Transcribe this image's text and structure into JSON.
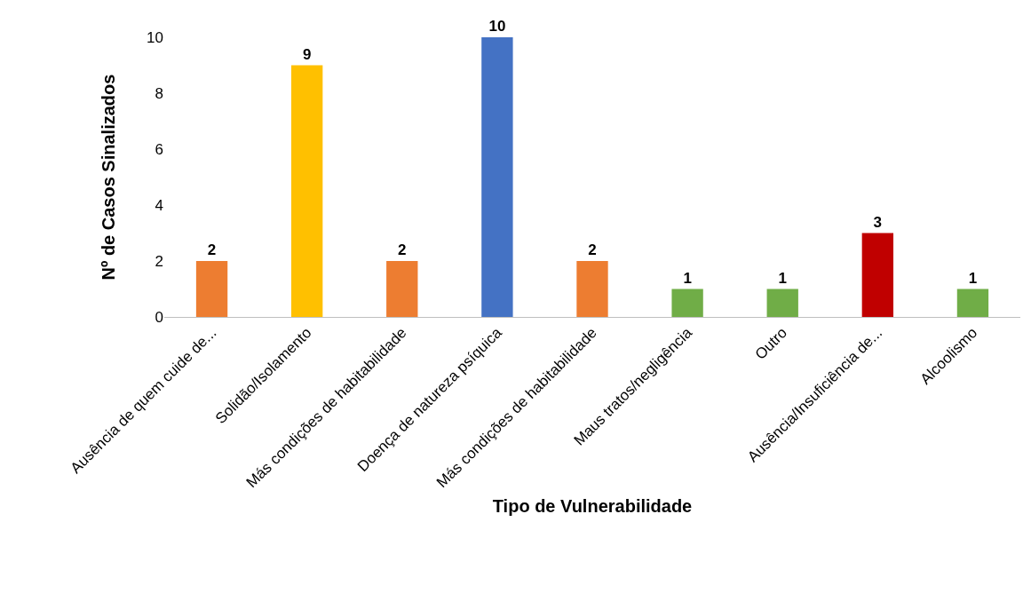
{
  "chart_data": {
    "type": "bar",
    "xlabel": "Tipo de Vulnerabilidade",
    "ylabel": "Nº de Casos Sinalizados",
    "categories": [
      "Ausência de quem cuide de...",
      "Solidão/Isolamento",
      "Más condições de habitabilidade",
      "Doença de natureza psíquica",
      "Más condições de habitabilidade",
      "Maus tratos/negligência",
      "Outro",
      "Ausência/Insuficiência de...",
      "Alcoolismo"
    ],
    "values": [
      2,
      9,
      2,
      10,
      2,
      1,
      1,
      3,
      1
    ],
    "colors": [
      "#ed7d31",
      "#ffc000",
      "#ed7d31",
      "#4472c4",
      "#ed7d31",
      "#70ad47",
      "#70ad47",
      "#c00000",
      "#70ad47"
    ],
    "ylim": [
      0,
      10
    ],
    "yticks": [
      0,
      2,
      4,
      6,
      8,
      10
    ],
    "data_labels": true,
    "grid": false,
    "legend": false
  }
}
